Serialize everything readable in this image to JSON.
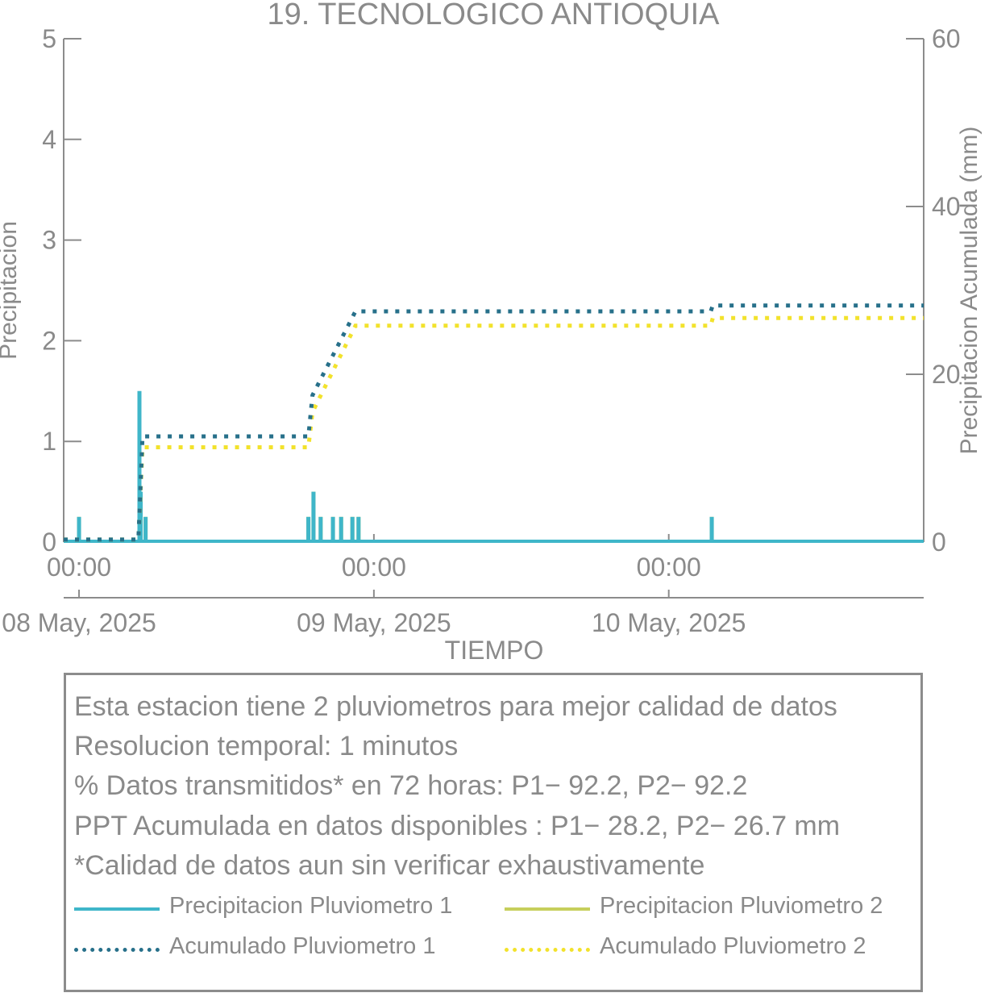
{
  "chart_data": {
    "type": "line",
    "title": "19. TECNOLOGICO ANTIOQUIA",
    "xlabel": "TIEMPO",
    "ylabel": "Precipitacion",
    "y2label": "Precipitacion Acumulada (mm)",
    "x_range": [
      "2025-05-07 22:45",
      "2025-05-10 20:45"
    ],
    "ylim": [
      0,
      5
    ],
    "y2lim": [
      0,
      60
    ],
    "yticks": [
      0,
      1,
      2,
      3,
      4,
      5
    ],
    "y2ticks": [
      0,
      20,
      40,
      60
    ],
    "xticks": [
      {
        "time": "2025-05-08 00:00",
        "label": "00:00",
        "date": "08 May, 2025"
      },
      {
        "time": "2025-05-09 00:00",
        "label": "00:00",
        "date": "09 May, 2025"
      },
      {
        "time": "2025-05-10 00:00",
        "label": "00:00",
        "date": "10 May, 2025"
      }
    ],
    "grid": false,
    "series": [
      {
        "name": "Precipitacion Pluviometro 1",
        "axis": "left",
        "style": "solid",
        "color": "#3fb6c9",
        "points": [
          [
            "2025-05-08 00:00",
            0.25
          ],
          [
            "2025-05-08 04:55",
            1.5
          ],
          [
            "2025-05-08 05:01",
            0.5
          ],
          [
            "2025-05-08 05:25",
            0.25
          ],
          [
            "2025-05-08 18:40",
            0.25
          ],
          [
            "2025-05-08 19:05",
            0.5
          ],
          [
            "2025-05-08 19:40",
            0.25
          ],
          [
            "2025-05-08 20:40",
            0.25
          ],
          [
            "2025-05-08 21:20",
            0.25
          ],
          [
            "2025-05-08 22:15",
            0.25
          ],
          [
            "2025-05-08 22:45",
            0.25
          ],
          [
            "2025-05-10 03:30",
            0.25
          ]
        ]
      },
      {
        "name": "Precipitacion Pluviometro 2",
        "axis": "left",
        "style": "solid",
        "color": "#c6cf5c",
        "points": [
          [
            "2025-05-08 00:00",
            0.25
          ],
          [
            "2025-05-08 04:55",
            1.25
          ],
          [
            "2025-05-08 05:01",
            0.5
          ],
          [
            "2025-05-08 05:25",
            0.25
          ],
          [
            "2025-05-08 18:40",
            0.25
          ],
          [
            "2025-05-08 19:05",
            0.5
          ],
          [
            "2025-05-08 19:40",
            0.25
          ],
          [
            "2025-05-08 20:40",
            0.25
          ],
          [
            "2025-05-08 21:20",
            0.25
          ],
          [
            "2025-05-08 22:15",
            0.25
          ],
          [
            "2025-05-08 22:45",
            0.25
          ],
          [
            "2025-05-10 03:30",
            0.25
          ]
        ]
      },
      {
        "name": "Acumulado Pluviometro 1",
        "axis": "right",
        "style": "dotted",
        "color": "#27708a",
        "points": [
          [
            "2025-05-07 22:45",
            0.3
          ],
          [
            "2025-05-08 04:50",
            0.3
          ],
          [
            "2025-05-08 05:10",
            12.6
          ],
          [
            "2025-05-08 18:40",
            12.6
          ],
          [
            "2025-05-08 19:00",
            17.5
          ],
          [
            "2025-05-08 22:30",
            27.5
          ],
          [
            "2025-05-10 03:25",
            27.5
          ],
          [
            "2025-05-10 03:35",
            28.2
          ],
          [
            "2025-05-10 20:45",
            28.2
          ]
        ]
      },
      {
        "name": "Acumulado Pluviometro 2",
        "axis": "right",
        "style": "dotted",
        "color": "#f2e22c",
        "points": [
          [
            "2025-05-07 22:45",
            0.3
          ],
          [
            "2025-05-08 04:50",
            0.3
          ],
          [
            "2025-05-08 05:10",
            11.3
          ],
          [
            "2025-05-08 18:40",
            11.3
          ],
          [
            "2025-05-08 19:00",
            15.5
          ],
          [
            "2025-05-08 22:30",
            25.8
          ],
          [
            "2025-05-10 03:25",
            25.8
          ],
          [
            "2025-05-10 03:35",
            26.7
          ],
          [
            "2025-05-10 20:45",
            26.7
          ]
        ]
      }
    ]
  },
  "info": {
    "lines": [
      "Esta estacion tiene 2 pluviometros para mejor calidad de datos",
      "Resolucion temporal: 1 minutos",
      "% Datos transmitidos* en 72 horas: P1− 92.2, P2− 92.2",
      "PPT Acumulada en datos disponibles : P1− 28.2, P2− 26.7 mm",
      "*Calidad de datos aun sin verificar exhaustivamente"
    ]
  },
  "legend": {
    "items": [
      {
        "label": "Precipitacion Pluviometro 1",
        "color": "#3fb6c9",
        "style": "solid"
      },
      {
        "label": "Precipitacion Pluviometro 2",
        "color": "#c6cf5c",
        "style": "solid"
      },
      {
        "label": "Acumulado Pluviometro 1",
        "color": "#27708a",
        "style": "dotted"
      },
      {
        "label": "Acumulado Pluviometro 2",
        "color": "#f2e22c",
        "style": "dotted"
      }
    ]
  }
}
